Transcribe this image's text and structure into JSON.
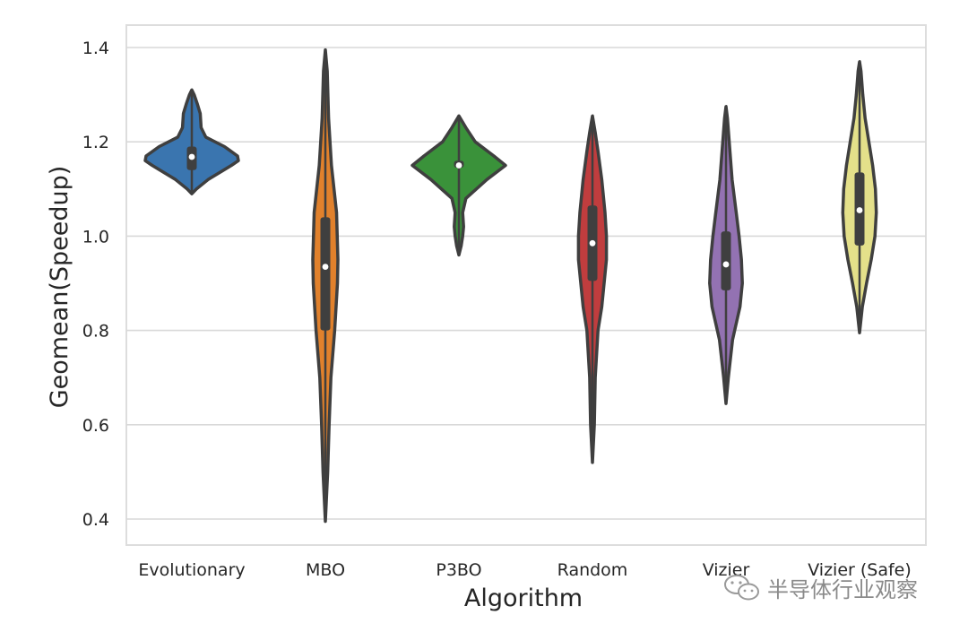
{
  "chart_data": {
    "type": "violin",
    "title": "",
    "xlabel": "Algorithm",
    "ylabel": "Geomean(Speedup)",
    "ylim": [
      0.35,
      1.45
    ],
    "yticks": [
      "0.4",
      "0.6",
      "0.8",
      "1.0",
      "1.2",
      "1.4"
    ],
    "grid": true,
    "categories": [
      "Evolutionary",
      "MBO",
      "P3BO",
      "Random",
      "Vizier",
      "Vizier (Safe)"
    ],
    "series": [
      {
        "category": "Evolutionary",
        "color": "#3a75af",
        "min": 1.09,
        "max": 1.31,
        "q1": 1.14,
        "median": 1.168,
        "q3": 1.19,
        "density": [
          [
            1.09,
            0.0
          ],
          [
            1.1,
            0.1
          ],
          [
            1.12,
            0.35
          ],
          [
            1.15,
            0.85
          ],
          [
            1.16,
            1.0
          ],
          [
            1.17,
            0.98
          ],
          [
            1.19,
            0.7
          ],
          [
            1.21,
            0.3
          ],
          [
            1.23,
            0.2
          ],
          [
            1.26,
            0.18
          ],
          [
            1.28,
            0.12
          ],
          [
            1.3,
            0.05
          ],
          [
            1.31,
            0.0
          ]
        ]
      },
      {
        "category": "MBO",
        "color": "#e1812c",
        "min": 0.395,
        "max": 1.395,
        "q1": 0.8,
        "median": 0.935,
        "q3": 1.04,
        "density": [
          [
            0.395,
            0.0
          ],
          [
            0.5,
            0.05
          ],
          [
            0.6,
            0.08
          ],
          [
            0.7,
            0.12
          ],
          [
            0.8,
            0.2
          ],
          [
            0.9,
            0.26
          ],
          [
            0.95,
            0.27
          ],
          [
            1.05,
            0.24
          ],
          [
            1.15,
            0.13
          ],
          [
            1.25,
            0.07
          ],
          [
            1.35,
            0.04
          ],
          [
            1.395,
            0.0
          ]
        ]
      },
      {
        "category": "P3BO",
        "color": "#3a923a",
        "min": 0.96,
        "max": 1.255,
        "q1": 1.145,
        "median": 1.15,
        "q3": 1.16,
        "density": [
          [
            0.96,
            0.0
          ],
          [
            0.98,
            0.05
          ],
          [
            1.0,
            0.08
          ],
          [
            1.02,
            0.1
          ],
          [
            1.05,
            0.08
          ],
          [
            1.08,
            0.15
          ],
          [
            1.12,
            0.6
          ],
          [
            1.15,
            1.0
          ],
          [
            1.17,
            0.75
          ],
          [
            1.2,
            0.35
          ],
          [
            1.23,
            0.15
          ],
          [
            1.255,
            0.0
          ]
        ]
      },
      {
        "category": "Random",
        "color": "#c03d3e",
        "min": 0.52,
        "max": 1.255,
        "q1": 0.905,
        "median": 0.985,
        "q3": 1.065,
        "density": [
          [
            0.52,
            0.0
          ],
          [
            0.6,
            0.04
          ],
          [
            0.7,
            0.06
          ],
          [
            0.8,
            0.12
          ],
          [
            0.85,
            0.2
          ],
          [
            0.95,
            0.3
          ],
          [
            1.0,
            0.3
          ],
          [
            1.05,
            0.27
          ],
          [
            1.12,
            0.2
          ],
          [
            1.18,
            0.12
          ],
          [
            1.22,
            0.06
          ],
          [
            1.255,
            0.0
          ]
        ]
      },
      {
        "category": "Vizier",
        "color": "#9372b2",
        "min": 0.645,
        "max": 1.275,
        "q1": 0.885,
        "median": 0.94,
        "q3": 1.01,
        "density": [
          [
            0.645,
            0.0
          ],
          [
            0.7,
            0.05
          ],
          [
            0.78,
            0.14
          ],
          [
            0.85,
            0.3
          ],
          [
            0.9,
            0.35
          ],
          [
            0.95,
            0.33
          ],
          [
            1.0,
            0.28
          ],
          [
            1.05,
            0.22
          ],
          [
            1.12,
            0.13
          ],
          [
            1.2,
            0.07
          ],
          [
            1.25,
            0.03
          ],
          [
            1.275,
            0.0
          ]
        ]
      },
      {
        "category": "Vizier (Safe)",
        "color": "#e4e08a",
        "min": 0.795,
        "max": 1.37,
        "q1": 0.98,
        "median": 1.055,
        "q3": 1.135,
        "density": [
          [
            0.795,
            0.0
          ],
          [
            0.85,
            0.06
          ],
          [
            0.9,
            0.15
          ],
          [
            0.95,
            0.25
          ],
          [
            1.0,
            0.33
          ],
          [
            1.05,
            0.36
          ],
          [
            1.1,
            0.34
          ],
          [
            1.15,
            0.28
          ],
          [
            1.2,
            0.2
          ],
          [
            1.25,
            0.12
          ],
          [
            1.3,
            0.07
          ],
          [
            1.35,
            0.03
          ],
          [
            1.37,
            0.0
          ]
        ]
      }
    ]
  },
  "watermark": {
    "icon": "wechat-icon",
    "text": "半导体行业观察"
  }
}
